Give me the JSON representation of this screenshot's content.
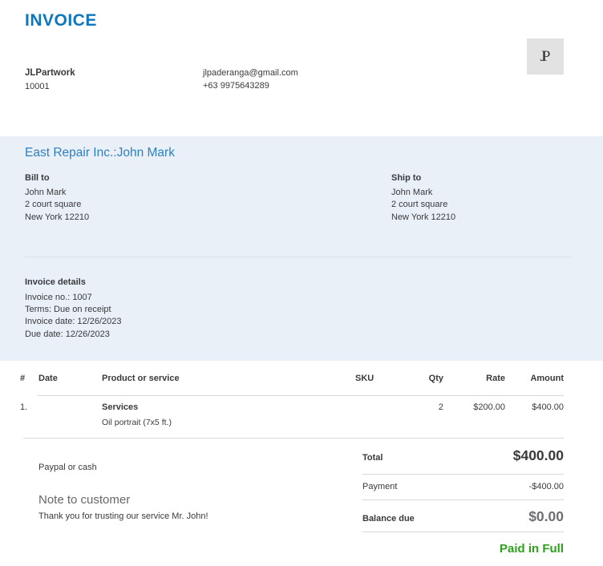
{
  "header": {
    "title": "INVOICE",
    "business_name": "JLPartwork",
    "business_number": "10001",
    "email": "jlpaderanga@gmail.com",
    "phone": "+63 9975643289",
    "logo_monogram": "JP"
  },
  "customer_section": {
    "customer_heading": "East Repair Inc.:John Mark",
    "bill_to": {
      "label": "Bill to",
      "lines": [
        "John Mark",
        "2 court square",
        "New York 12210"
      ]
    },
    "ship_to": {
      "label": "Ship to",
      "lines": [
        "John Mark",
        "2 court square",
        "New York 12210"
      ]
    },
    "invoice_details": {
      "label": "Invoice details",
      "invoice_no": "Invoice no.: 1007",
      "terms": "Terms: Due on receipt",
      "invoice_date": "Invoice date: 12/26/2023",
      "due_date": "Due date: 12/26/2023"
    }
  },
  "line_items": {
    "columns": [
      "#",
      "Date",
      "Product or service",
      "SKU",
      "Qty",
      "Rate",
      "Amount"
    ],
    "rows": [
      {
        "num": "1.",
        "date": "",
        "product": "Services",
        "description": "Oil portrait (7x5 ft.)",
        "sku": "",
        "qty": "2",
        "rate": "$200.00",
        "amount": "$400.00"
      }
    ]
  },
  "footer_left": {
    "payment_method": "Paypal or cash",
    "note_heading": "Note to customer",
    "note_text": "Thank you for trusting our service Mr. John!"
  },
  "totals": {
    "total_label": "Total",
    "total_value": "$400.00",
    "payment_label": "Payment",
    "payment_value": "-$400.00",
    "balance_label": "Balance due",
    "balance_value": "$0.00",
    "status": "Paid in Full"
  },
  "colors": {
    "title_blue": "#0d76bd",
    "customer_heading_blue": "#2e80c2",
    "band_background": "#e9f0f7",
    "paid_green": "#2ca01c",
    "text_dark": "#393a3d",
    "text_muted": "#6e6f73"
  }
}
